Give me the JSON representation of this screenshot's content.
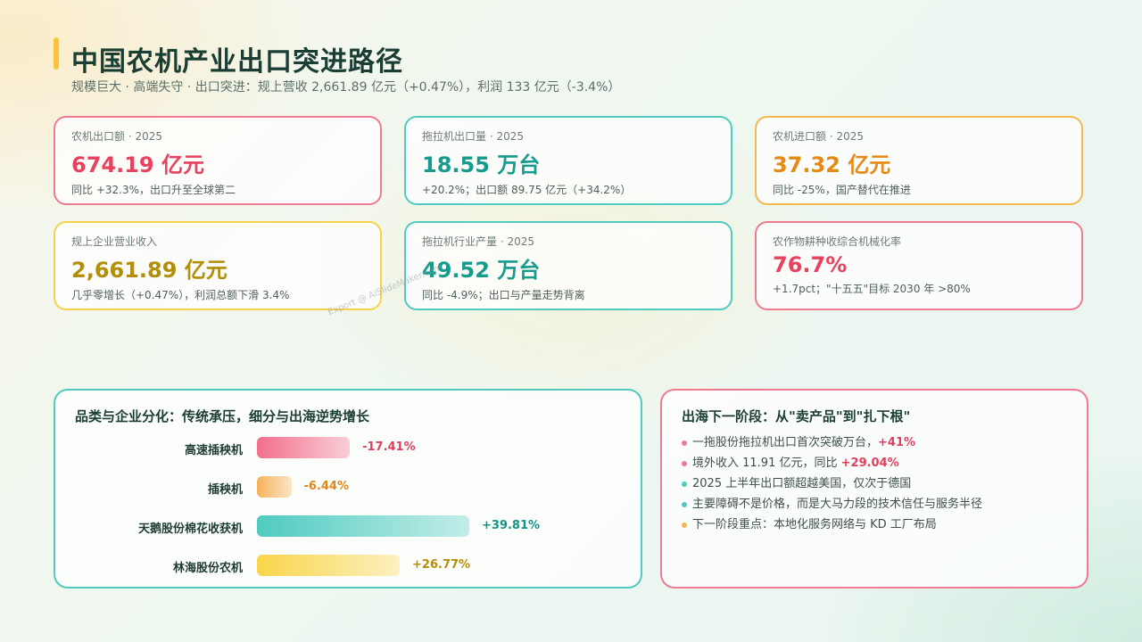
{
  "header": {
    "title": "中国农机产业出口突进路径",
    "subtitle": "规模巨大 · 高端失守 · 出口突进：规上营收 2,661.89 亿元（+0.47%），利润 133 亿元（-3.4%）"
  },
  "kpis": [
    {
      "label": "农机出口额 · 2025",
      "value": "674.19 亿元",
      "note": "同比 +32.3%，出口升至全球第二"
    },
    {
      "label": "拖拉机出口量 · 2025",
      "value": "18.55 万台",
      "note": "+20.2%；出口额 89.75 亿元（+34.2%）"
    },
    {
      "label": "农机进口额 · 2025",
      "value": "37.32 亿元",
      "note": "同比 -25%，国产替代在推进"
    },
    {
      "label": "规上企业营业收入",
      "value": "2,661.89 亿元",
      "note": "几乎零增长（+0.47%），利润总额下滑 3.4%"
    },
    {
      "label": "拖拉机行业产量 · 2025",
      "value": "49.52 万台",
      "note": "同比 -4.9%；出口与产量走势背离"
    },
    {
      "label": "农作物耕种收综合机械化率",
      "value": "76.7%",
      "note": "+1.7pct；\"十五五\"目标 2030 年 >80%"
    }
  ],
  "watermark": "Export @ AiSlideMaker.com",
  "growth_panel": {
    "title": "品类与企业分化：传统承压，细分与出海逆势增长",
    "items": [
      {
        "label": "高速插秧机",
        "value": -17.41,
        "display": "-17.41%",
        "color": "#f36f8c",
        "text_color": "#e23d5a"
      },
      {
        "label": "插秧机",
        "value": -6.44,
        "display": "-6.44%",
        "color": "#f6b15a",
        "text_color": "#e0861a"
      },
      {
        "label": "天鹅股份棉花收获机",
        "value": 39.81,
        "display": "+39.81%",
        "color": "#4fcbc0",
        "text_color": "#139486"
      },
      {
        "label": "林海股份农机",
        "value": 26.77,
        "display": "+26.77%",
        "color": "#f9d54a",
        "text_color": "#b58e06"
      }
    ]
  },
  "next_panel": {
    "title": "出海下一阶段：从\"卖产品\"到\"扎下根\"",
    "bullets": [
      {
        "text": "一拖股份拖拉机出口首次突破万台，",
        "highlight": "+41%",
        "dot_color": "#f07a92",
        "hl_color": "#e23d5a"
      },
      {
        "text": "境外收入 11.91 亿元，同比 ",
        "highlight": "+29.04%",
        "dot_color": "#f07a92",
        "hl_color": "#e23d5a"
      },
      {
        "text": "2025 上半年出口额超越美国，仅次于德国",
        "highlight": "",
        "dot_color": "#4fcbc0",
        "hl_color": "#139486"
      },
      {
        "text": "主要障碍不是价格，而是大马力段的技术信任与服务半径",
        "highlight": "",
        "dot_color": "#4fcbc0",
        "hl_color": "#139486"
      },
      {
        "text": "下一阶段重点：本地化服务网络与 KD 工厂布局",
        "highlight": "",
        "dot_color": "#f6b74c",
        "hl_color": "#e58a12"
      }
    ]
  }
}
